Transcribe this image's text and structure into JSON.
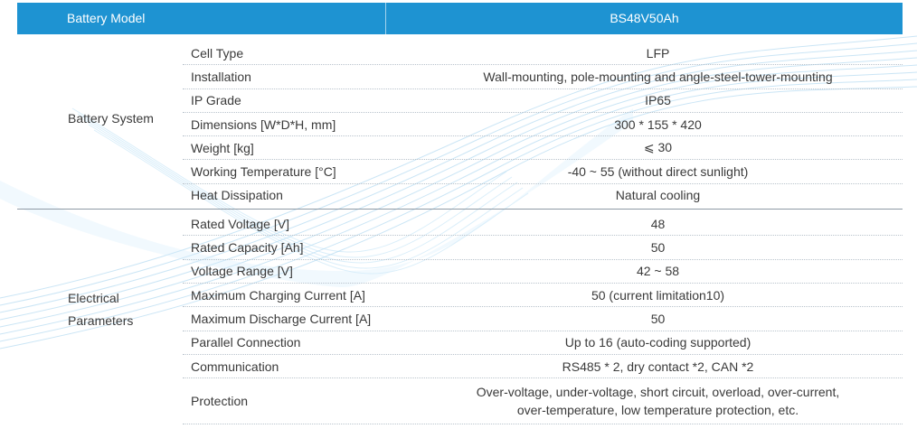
{
  "table": {
    "header": {
      "label": "Battery Model",
      "value": "BS48V50Ah"
    },
    "groups": [
      {
        "label_lines": [
          "Battery System"
        ],
        "rows": [
          {
            "param": "Cell Type",
            "value": "LFP"
          },
          {
            "param": "Installation",
            "value": "Wall-mounting, pole-mounting and angle-steel-tower-mounting"
          },
          {
            "param": "IP Grade",
            "value": "IP65"
          },
          {
            "param": "Dimensions [W*D*H, mm]",
            "value": "300 * 155 * 420"
          },
          {
            "param": "Weight [kg]",
            "value": "⩽ 30"
          },
          {
            "param": "Working Temperature [°C]",
            "value": "-40 ~ 55 (without direct sunlight)"
          },
          {
            "param": "Heat Dissipation",
            "value": "Natural cooling"
          }
        ]
      },
      {
        "label_lines": [
          "Electrical",
          "Parameters"
        ],
        "rows": [
          {
            "param": "Rated Voltage [V]",
            "value": "48"
          },
          {
            "param": "Rated Capacity [Ah]",
            "value": "50"
          },
          {
            "param": "Voltage Range [V]",
            "value": "42 ~ 58"
          },
          {
            "param": "Maximum Charging Current [A]",
            "value": "50 (current limitation10)"
          },
          {
            "param": "Maximum Discharge Current [A]",
            "value": "50"
          },
          {
            "param": "Parallel Connection",
            "value": "Up to 16 (auto-coding supported)"
          },
          {
            "param": "Communication",
            "value": "RS485 * 2, dry contact *2, CAN *2"
          },
          {
            "param": "Protection",
            "value_lines": [
              "Over-voltage, under-voltage, short circuit, overload, over-current,",
              "over-temperature, low temperature protection, etc."
            ]
          }
        ]
      }
    ]
  },
  "colors": {
    "header_bg": "#1e93d2",
    "header_text": "#ffffff",
    "text": "#3a3a3a",
    "wave": "#8fc8ea"
  }
}
